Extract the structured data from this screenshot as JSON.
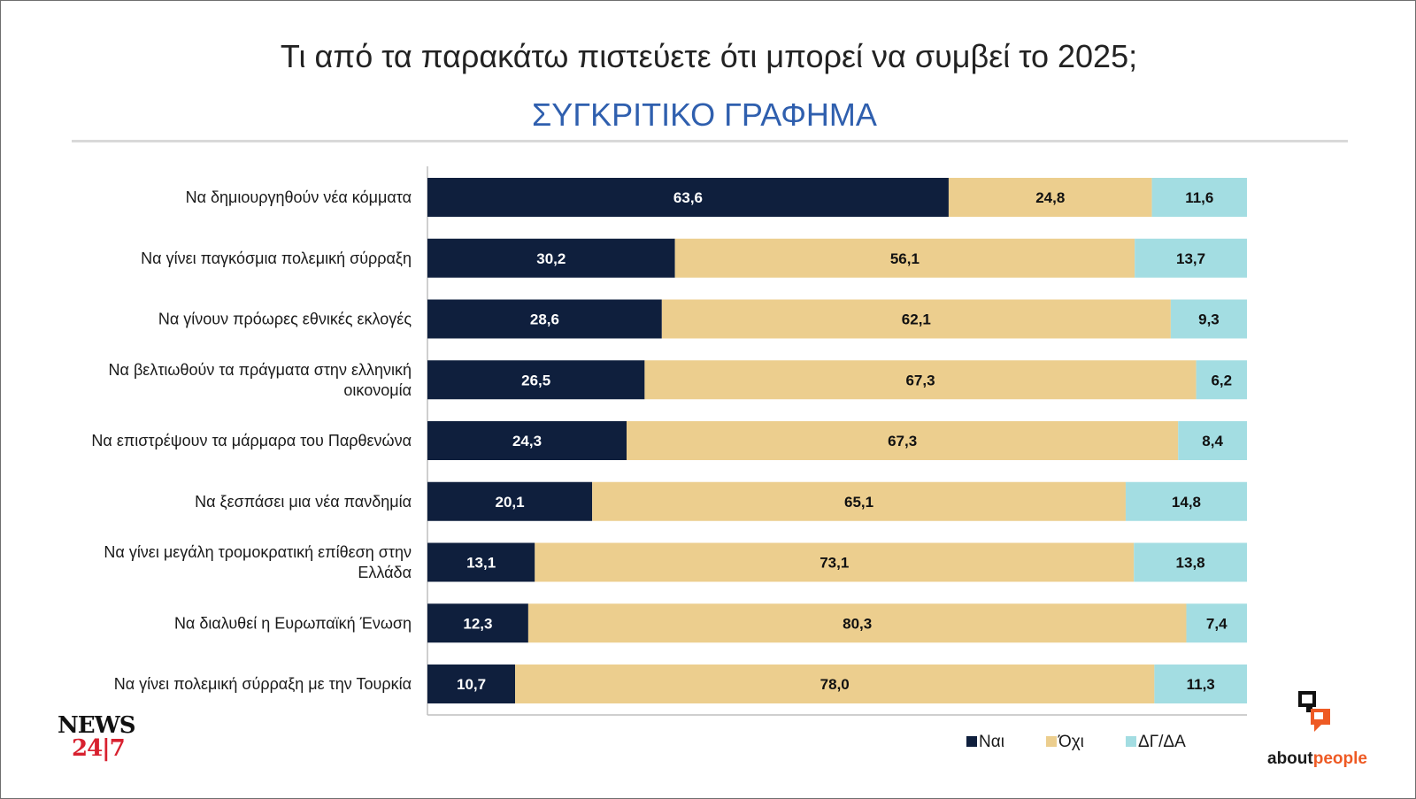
{
  "title": "Τι από τα παρακάτω πιστεύετε ότι μπορεί να συμβεί το 2025;",
  "subtitle": "ΣΥΓΚΡΙΤΙΚΟ ΓΡΑΦΗΜΑ",
  "logos": {
    "news_line1": "NEWS",
    "news_line2": "24|7",
    "about_part1": "about",
    "about_part2": "people"
  },
  "colors": {
    "title": "#222222",
    "subtitle": "#2f5fae",
    "yes": "#0f1f3d",
    "no": "#ecce8e",
    "dk": "#a3dde2",
    "news_red": "#d8212f",
    "about_orange": "#ee5a24"
  },
  "chart_data": {
    "type": "bar",
    "orientation": "horizontal",
    "stacked": true,
    "categories": [
      "Να δημιουργηθούν νέα κόμματα",
      "Να γίνει παγκόσμια πολεμική σύρραξη",
      "Να γίνουν πρόωρες εθνικές εκλογές",
      "Να βελτιωθούν τα πράγματα στην ελληνική οικονομία",
      "Να επιστρέψουν τα μάρμαρα του Παρθενώνα",
      "Να ξεσπάσει μια νέα πανδημία",
      "Να γίνει μεγάλη τρομοκρατική επίθεση στην Ελλάδα",
      "Να διαλυθεί η Ευρωπαϊκή Ένωση",
      "Να γίνει πολεμική σύρραξη με την Τουρκία"
    ],
    "category_lines": [
      [
        "Να δημιουργηθούν νέα κόμματα"
      ],
      [
        "Να γίνει παγκόσμια πολεμική σύρραξη"
      ],
      [
        "Να γίνουν πρόωρες εθνικές εκλογές"
      ],
      [
        "Να βελτιωθούν τα πράγματα στην ελληνική",
        "οικονομία"
      ],
      [
        "Να επιστρέψουν τα μάρμαρα του Παρθενώνα"
      ],
      [
        "Να ξεσπάσει μια νέα πανδημία"
      ],
      [
        "Να γίνει μεγάλη τρομοκρατική επίθεση στην",
        "Ελλάδα"
      ],
      [
        "Να διαλυθεί η Ευρωπαϊκή Ένωση"
      ],
      [
        "Να γίνει πολεμική σύρραξη με την Τουρκία"
      ]
    ],
    "series": [
      {
        "name": "Ναι",
        "color": "#0f1f3d",
        "label_color": "#ffffff",
        "values": [
          63.6,
          30.2,
          28.6,
          26.5,
          24.3,
          20.1,
          13.1,
          12.3,
          10.7
        ],
        "labels": [
          "63,6",
          "30,2",
          "28,6",
          "26,5",
          "24,3",
          "20,1",
          "13,1",
          "12,3",
          "10,7"
        ]
      },
      {
        "name": "Όχι",
        "color": "#ecce8e",
        "label_color": "#111111",
        "values": [
          24.8,
          56.1,
          62.1,
          67.3,
          67.3,
          65.1,
          73.1,
          80.3,
          78.0
        ],
        "labels": [
          "24,8",
          "56,1",
          "62,1",
          "67,3",
          "67,3",
          "65,1",
          "73,1",
          "80,3",
          "78,0"
        ]
      },
      {
        "name": "ΔΓ/ΔΑ",
        "color": "#a3dde2",
        "label_color": "#111111",
        "values": [
          11.6,
          13.7,
          9.3,
          6.2,
          8.4,
          14.8,
          13.8,
          7.4,
          11.3
        ],
        "labels": [
          "11,6",
          "13,7",
          "9,3",
          "6,2",
          "8,4",
          "14,8",
          "13,8",
          "7,4",
          "11,3"
        ]
      }
    ],
    "xlim": [
      0,
      100
    ],
    "grid": false,
    "legend": "bottom-right"
  }
}
